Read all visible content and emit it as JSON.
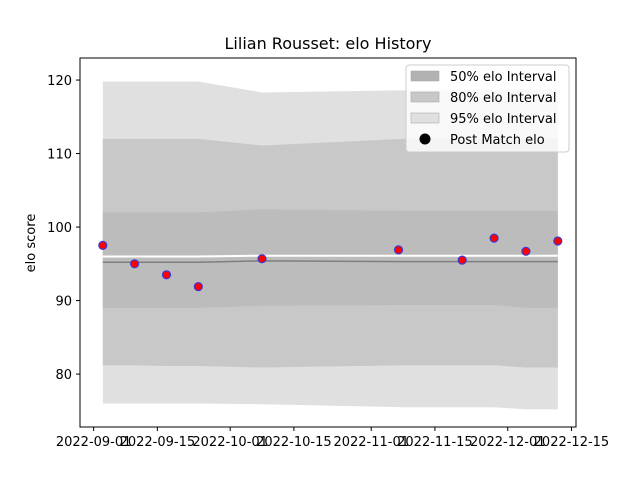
{
  "chart_data": {
    "type": "line",
    "title": "Lilian Rousset: elo History",
    "xlabel": "",
    "ylabel": "elo score",
    "x_ticks": [
      "2022-09-01",
      "2022-09-15",
      "2022-10-01",
      "2022-10-15",
      "2022-11-01",
      "2022-11-15",
      "2022-12-01",
      "2022-12-15"
    ],
    "y_ticks": [
      80,
      90,
      100,
      110,
      120
    ],
    "xlim": [
      "2022-08-29",
      "2022-12-16"
    ],
    "ylim": [
      72.8,
      123
    ],
    "grid": false,
    "legend_position": "top-right",
    "legend": [
      {
        "label": "50% elo Interval",
        "kind": "patch",
        "color": "#b2b2b2"
      },
      {
        "label": "80% elo Interval",
        "kind": "patch",
        "color": "#c8c8c8"
      },
      {
        "label": "95% elo Interval",
        "kind": "patch",
        "color": "#e0e0e0"
      },
      {
        "label": "Post Match elo",
        "kind": "marker",
        "color": "#000000"
      }
    ],
    "interval_x": [
      "2022-09-03",
      "2022-09-10",
      "2022-09-17",
      "2022-09-24",
      "2022-10-08",
      "2022-11-08",
      "2022-11-21",
      "2022-11-28",
      "2022-12-05",
      "2022-12-12"
    ],
    "bands": [
      {
        "name": "95% elo Interval",
        "color": "#e0e0e0",
        "lower": [
          76,
          76,
          76,
          76,
          75.9,
          75.5,
          75.5,
          75.5,
          75.2,
          75.2
        ],
        "upper": [
          119.8,
          119.8,
          119.8,
          119.8,
          118.3,
          118.6,
          118.6,
          118.6,
          118.8,
          118.8
        ]
      },
      {
        "name": "80% elo Interval",
        "color": "#c8c8c8",
        "lower": [
          81.2,
          81.2,
          81.1,
          81.1,
          80.9,
          81.2,
          81.2,
          81.2,
          80.9,
          80.9
        ],
        "upper": [
          112,
          112,
          112,
          112,
          111.1,
          112,
          112,
          112,
          112,
          112
        ]
      },
      {
        "name": "50% elo Interval",
        "color": "#bcbcbc",
        "lower": [
          89,
          89,
          89,
          89,
          89.3,
          89.4,
          89.4,
          89.4,
          89,
          89
        ],
        "upper": [
          102,
          102,
          102,
          102,
          102.4,
          102.2,
          102.2,
          102.2,
          102.2,
          102.2
        ]
      }
    ],
    "median_line": {
      "color": "#7f7f7f",
      "values": [
        95.2,
        95.2,
        95.2,
        95.2,
        95.4,
        95.3,
        95.3,
        95.3,
        95.3,
        95.3
      ]
    },
    "mean_line": {
      "color": "#ffffff",
      "values": [
        96,
        96,
        96,
        96,
        96.1,
        96.1,
        96.1,
        96.1,
        96.1,
        96.1
      ]
    },
    "points": {
      "name": "Post Match elo",
      "face_color": "#ff0000",
      "edge_color": "#3a3ad8",
      "x": [
        "2022-09-03",
        "2022-09-10",
        "2022-09-17",
        "2022-09-24",
        "2022-10-08",
        "2022-11-07",
        "2022-11-21",
        "2022-11-28",
        "2022-12-05",
        "2022-12-12"
      ],
      "y": [
        97.5,
        95,
        93.5,
        91.9,
        95.7,
        96.9,
        95.5,
        98.5,
        96.7,
        98.1
      ]
    }
  }
}
